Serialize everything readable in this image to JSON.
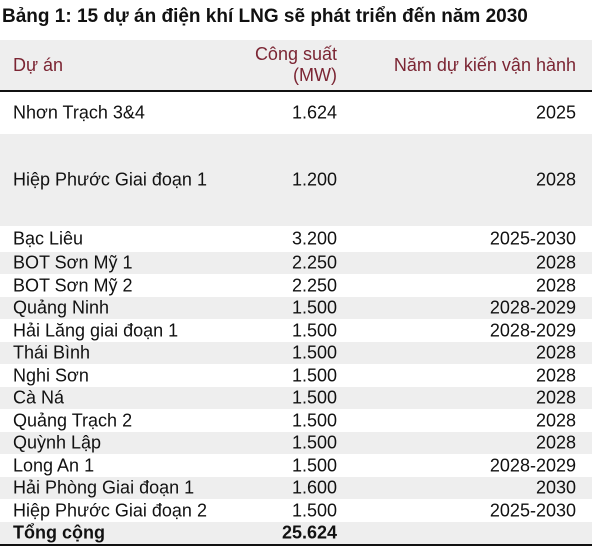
{
  "title": "Bảng 1: 15 dự án điện khí LNG sẽ phát triển đến năm 2030",
  "columns": {
    "project": "Dự án",
    "capacity_line1": "Công suất",
    "capacity_line2": "(MW)",
    "year": "Năm dự kiến vận hành"
  },
  "rows": [
    {
      "project": "Nhơn Trạch 3&4",
      "capacity": "1.624",
      "year": "2025"
    },
    {
      "project": "Hiệp Phước Giai đoạn 1",
      "capacity": "1.200",
      "year": "2028"
    },
    {
      "project": "Bạc Liêu",
      "capacity": "3.200",
      "year": "2025-2030"
    },
    {
      "project": "BOT Sơn Mỹ 1",
      "capacity": "2.250",
      "year": "2028"
    },
    {
      "project": "BOT Sơn Mỹ 2",
      "capacity": "2.250",
      "year": "2028"
    },
    {
      "project": "Quảng Ninh",
      "capacity": "1.500",
      "year": "2028-2029"
    },
    {
      "project": "Hải Lăng giai đoạn 1",
      "capacity": "1.500",
      "year": "2028-2029"
    },
    {
      "project": "Thái Bình",
      "capacity": "1.500",
      "year": "2028"
    },
    {
      "project": "Nghi Sơn",
      "capacity": "1.500",
      "year": "2028"
    },
    {
      "project": "Cà Ná",
      "capacity": "1.500",
      "year": "2028"
    },
    {
      "project": "Quảng Trạch 2",
      "capacity": "1.500",
      "year": "2028"
    },
    {
      "project": "Quỳnh Lập",
      "capacity": "1.500",
      "year": "2028"
    },
    {
      "project": "Long An 1",
      "capacity": "1.500",
      "year": "2028-2029"
    },
    {
      "project": "Hải Phòng Giai đoạn 1",
      "capacity": "1.600",
      "year": "2030"
    },
    {
      "project": "Hiệp Phước Giai đoạn 2",
      "capacity": "1.500",
      "year": "2025-2030"
    }
  ],
  "total": {
    "label": "Tổng cộng",
    "capacity": "25.624",
    "year": ""
  }
}
